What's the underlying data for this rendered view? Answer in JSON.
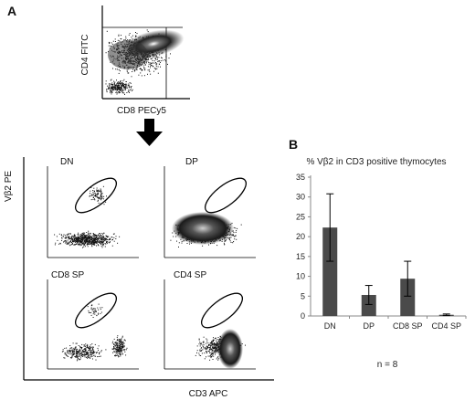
{
  "panel_a": {
    "label": "A",
    "top_plot": {
      "y_label": "CD4 FITC",
      "x_label": "CD8 PECy5"
    },
    "quad_plots": {
      "y_label": "Vβ2 PE",
      "x_label": "CD3 APC",
      "gates": [
        "DN",
        "DP",
        "CD8 SP",
        "CD4 SP"
      ]
    }
  },
  "panel_b": {
    "label": "B",
    "footnote": "n = 8"
  },
  "chart_data": {
    "type": "bar",
    "title": "% Vβ2 in CD3 positive thymocytes",
    "categories": [
      "DN",
      "DP",
      "CD8 SP",
      "CD4 SP"
    ],
    "values": [
      22.3,
      5.3,
      9.4,
      0.3
    ],
    "error": [
      8.5,
      2.4,
      4.4,
      0.2
    ],
    "ylim": [
      0,
      35
    ],
    "yticks": [
      0,
      5,
      10,
      15,
      20,
      25,
      30,
      35
    ],
    "bar_color": "#4a4a4a",
    "grid": false
  }
}
